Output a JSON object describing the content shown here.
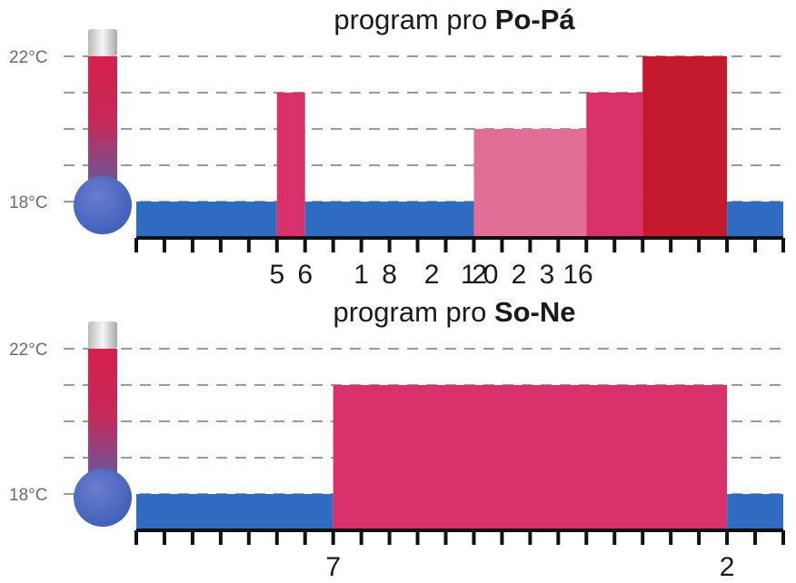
{
  "chart_data": [
    {
      "type": "bar",
      "title_prefix": "program pro ",
      "title_bold": "Po-Pá",
      "y_ticks": [
        "18°C",
        "22°C"
      ],
      "ylim": [
        17,
        22
      ],
      "xlim": [
        0,
        23
      ],
      "x_tick_count": 24,
      "x_labels": [
        {
          "x": 5,
          "text": "5"
        },
        {
          "x": 6,
          "text": "6"
        },
        {
          "x": 8,
          "text": "1"
        },
        {
          "x": 9,
          "text": "8"
        },
        {
          "x": 10.5,
          "text": "2"
        },
        {
          "x": 11.8,
          "text": "1"
        },
        {
          "x": 12.2,
          "text": "2"
        },
        {
          "x": 12.6,
          "text": "0"
        },
        {
          "x": 13.6,
          "text": "2"
        },
        {
          "x": 14.6,
          "text": "3"
        },
        {
          "x": 15.7,
          "text": "16"
        }
      ],
      "segments": [
        {
          "start": 0,
          "end": 5,
          "temp": 18,
          "color": "#2f6cc0"
        },
        {
          "start": 5,
          "end": 6,
          "temp": 21,
          "color": "#d8306a"
        },
        {
          "start": 6,
          "end": 12,
          "temp": 18,
          "color": "#2f6cc0"
        },
        {
          "start": 12,
          "end": 16,
          "temp": 20,
          "color": "#e06e97"
        },
        {
          "start": 16,
          "end": 18,
          "temp": 21,
          "color": "#d8306a"
        },
        {
          "start": 18,
          "end": 21,
          "temp": 22,
          "color": "#c4192c"
        },
        {
          "start": 21,
          "end": 23,
          "temp": 18,
          "color": "#2f6cc0"
        }
      ]
    },
    {
      "type": "bar",
      "title_prefix": "program pro ",
      "title_bold": "So-Ne",
      "y_ticks": [
        "18°C",
        "22°C"
      ],
      "ylim": [
        17,
        22
      ],
      "xlim": [
        0,
        23
      ],
      "x_tick_count": 24,
      "x_labels": [
        {
          "x": 7,
          "text": "7"
        },
        {
          "x": 21,
          "text": "2"
        }
      ],
      "segments": [
        {
          "start": 0,
          "end": 7,
          "temp": 18,
          "color": "#2f6cc0"
        },
        {
          "start": 7,
          "end": 21,
          "temp": 21,
          "color": "#d8306a"
        },
        {
          "start": 21,
          "end": 23,
          "temp": 18,
          "color": "#2f6cc0"
        }
      ]
    }
  ]
}
